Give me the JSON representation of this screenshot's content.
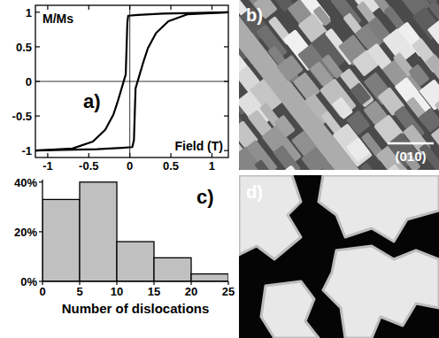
{
  "chart_data": [
    {
      "type": "line",
      "ylabel": "M/Ms",
      "xlabel": "Field (T)",
      "annotations": [
        "a)"
      ],
      "xlim": [
        -1.15,
        1.2
      ],
      "xticks": [
        -1,
        -0.5,
        0,
        0.5,
        1
      ],
      "ylim": [
        -1.1,
        1.1
      ],
      "yticks": [
        -1,
        -0.5,
        0,
        0.5,
        1
      ],
      "series": [
        {
          "color": "#000000",
          "x": [
            1.2,
            0.8,
            0.4,
            0.1,
            -0.02,
            -0.03,
            -0.05,
            -0.1,
            -0.15,
            -0.2,
            -0.3,
            -0.45,
            -0.7,
            -1.15
          ],
          "values": [
            1,
            0.99,
            0.98,
            0.96,
            0.95,
            0.85,
            0.1,
            -0.1,
            -0.3,
            -0.48,
            -0.7,
            -0.87,
            -0.97,
            -1
          ]
        },
        {
          "color": "#000000",
          "x": [
            -1.15,
            -0.8,
            -0.4,
            -0.1,
            0.03,
            0.05,
            0.07,
            0.12,
            0.17,
            0.22,
            0.32,
            0.47,
            0.7,
            1.2
          ],
          "values": [
            -1,
            -0.99,
            -0.98,
            -0.96,
            -0.95,
            -0.85,
            -0.1,
            0.1,
            0.3,
            0.48,
            0.7,
            0.87,
            0.97,
            1
          ]
        }
      ]
    },
    {
      "type": "histogram",
      "xlabel": "Number of dislocations",
      "annotations": [
        "c)"
      ],
      "bins": [
        0,
        5,
        10,
        15,
        20,
        25
      ],
      "values": [
        33,
        40,
        16,
        9.5,
        3
      ],
      "color": "#c0c0c0",
      "xlim": [
        0,
        25
      ],
      "xticks": [
        0,
        5,
        10,
        15,
        20,
        25
      ],
      "ylim": [
        0,
        41
      ],
      "yticks": [
        {
          "value": 0,
          "label": "0%"
        },
        {
          "value": 20,
          "label": "20%"
        },
        {
          "value": 40,
          "label": "40%"
        }
      ]
    }
  ],
  "images": [
    {
      "label": "b)",
      "annotation": "(010)"
    },
    {
      "label": "d)"
    }
  ]
}
